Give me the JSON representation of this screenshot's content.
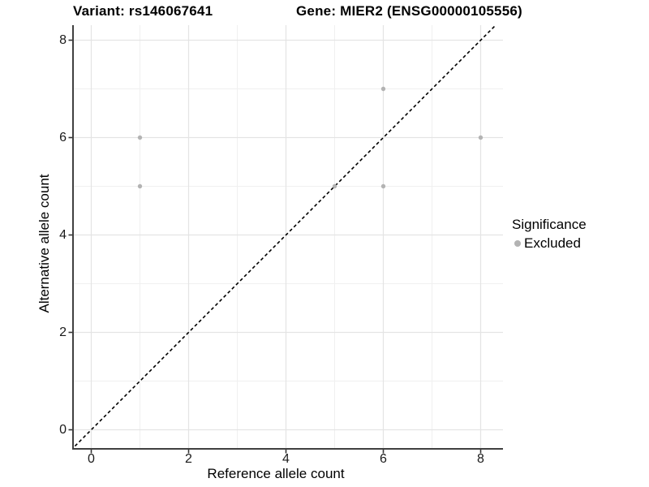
{
  "header": {
    "variant_title": "Variant: rs146067641",
    "gene_title": "Gene: MIER2 (ENSG00000105556)"
  },
  "chart_data": {
    "type": "scatter",
    "xlabel": "Reference allele count",
    "ylabel": "Alternative allele count",
    "x_ticks": [
      0,
      2,
      4,
      6,
      8
    ],
    "y_ticks": [
      0,
      2,
      4,
      6,
      8
    ],
    "xlim": [
      -0.42,
      8.45
    ],
    "ylim": [
      -0.42,
      8.45
    ],
    "grid": {
      "major": [
        0,
        2,
        4,
        6,
        8
      ],
      "minor": [
        1,
        3,
        5,
        7
      ]
    },
    "identity_line": {
      "slope": 1,
      "intercept": 0,
      "style": "dashed",
      "color": "#000000"
    },
    "series": [
      {
        "name": "Excluded",
        "color": "#b3b3b3",
        "points": [
          [
            1,
            5
          ],
          [
            1,
            6
          ],
          [
            5,
            5
          ],
          [
            6,
            5
          ],
          [
            6,
            7
          ],
          [
            8,
            6
          ]
        ]
      }
    ],
    "legend": {
      "title": "Significance",
      "position": "right",
      "items": [
        {
          "label": "Excluded",
          "color": "#b3b3b3",
          "marker": "circle"
        }
      ]
    },
    "colors": {
      "point": "#b3b3b3",
      "grid_major": "#e4e4e4",
      "grid_minor": "#f0f0f0",
      "axis_line": "#404040",
      "tick_mark": "#333333",
      "identity_line": "#000000",
      "background": "#ffffff"
    }
  }
}
